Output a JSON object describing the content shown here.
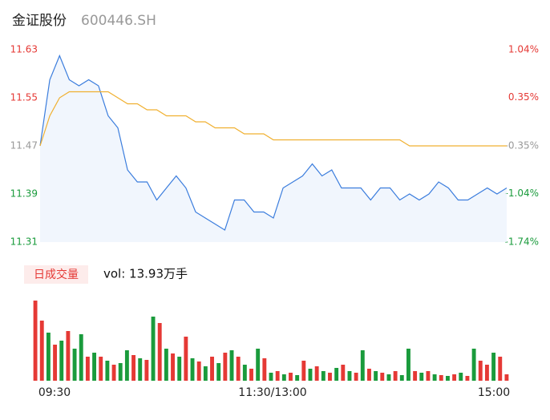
{
  "header": {
    "name": "金证股份",
    "code": "600446.SH"
  },
  "chart_data": [
    {
      "type": "line",
      "ylim": [
        11.31,
        11.63
      ],
      "yticks": [
        11.31,
        11.39,
        11.47,
        11.55,
        11.63
      ],
      "ytick_colors": [
        "#1a9b3c",
        "#1a9b3c",
        "#999999",
        "#e53935",
        "#e53935"
      ],
      "y2lim": [
        -1.74,
        1.04
      ],
      "y2ticks": [
        {
          "value": -1.74,
          "label": "-1.74%"
        },
        {
          "value": -1.04,
          "label": "-1.04%"
        },
        {
          "value": -0.35,
          "label": "-0.35%"
        },
        {
          "value": 0.35,
          "label": "0.35%"
        },
        {
          "value": 1.04,
          "label": "1.04%"
        }
      ],
      "series": [
        {
          "name": "price",
          "color": "#3b7ddd",
          "values": [
            11.47,
            11.58,
            11.62,
            11.58,
            11.57,
            11.58,
            11.57,
            11.52,
            11.5,
            11.43,
            11.41,
            11.41,
            11.38,
            11.4,
            11.42,
            11.4,
            11.36,
            11.35,
            11.34,
            11.33,
            11.38,
            11.38,
            11.36,
            11.36,
            11.35,
            11.4,
            11.41,
            11.42,
            11.44,
            11.42,
            11.43,
            11.4,
            11.4,
            11.4,
            11.38,
            11.4,
            11.4,
            11.38,
            11.39,
            11.38,
            11.39,
            11.41,
            11.4,
            11.38,
            11.38,
            11.39,
            11.4,
            11.39,
            11.4
          ]
        },
        {
          "name": "average",
          "color": "#f0b030",
          "values": [
            11.47,
            11.52,
            11.55,
            11.56,
            11.56,
            11.56,
            11.56,
            11.56,
            11.55,
            11.54,
            11.54,
            11.53,
            11.53,
            11.52,
            11.52,
            11.52,
            11.51,
            11.51,
            11.5,
            11.5,
            11.5,
            11.49,
            11.49,
            11.49,
            11.48,
            11.48,
            11.48,
            11.48,
            11.48,
            11.48,
            11.48,
            11.48,
            11.48,
            11.48,
            11.48,
            11.48,
            11.48,
            11.48,
            11.47,
            11.47,
            11.47,
            11.47,
            11.47,
            11.47,
            11.47,
            11.47,
            11.47,
            11.47,
            11.47
          ]
        }
      ]
    },
    {
      "type": "bar",
      "title": "日成交量",
      "subtitle": "vol: 13.93万手",
      "ylim": [
        0,
        100
      ],
      "values": [
        100,
        75,
        60,
        45,
        50,
        62,
        40,
        58,
        30,
        35,
        30,
        25,
        20,
        22,
        38,
        32,
        28,
        26,
        80,
        72,
        40,
        34,
        30,
        55,
        28,
        24,
        18,
        30,
        22,
        35,
        38,
        30,
        20,
        15,
        40,
        28,
        10,
        12,
        8,
        10,
        7,
        25,
        15,
        18,
        12,
        10,
        16,
        20,
        12,
        10,
        38,
        15,
        12,
        10,
        8,
        12,
        7,
        40,
        12,
        10,
        12,
        8,
        7,
        6,
        8,
        10,
        6,
        40,
        25,
        20,
        35,
        30,
        8
      ],
      "colors": [
        "#e53935",
        "#e53935",
        "#1a9b3c",
        "#e53935",
        "#1a9b3c",
        "#e53935",
        "#1a9b3c",
        "#1a9b3c",
        "#e53935",
        "#1a9b3c",
        "#e53935",
        "#1a9b3c",
        "#e53935",
        "#1a9b3c",
        "#1a9b3c",
        "#e53935",
        "#1a9b3c",
        "#e53935",
        "#1a9b3c",
        "#e53935",
        "#1a9b3c",
        "#e53935",
        "#1a9b3c",
        "#e53935",
        "#1a9b3c",
        "#e53935",
        "#1a9b3c",
        "#e53935",
        "#1a9b3c",
        "#e53935",
        "#1a9b3c",
        "#e53935",
        "#1a9b3c",
        "#e53935",
        "#1a9b3c",
        "#e53935",
        "#1a9b3c",
        "#e53935",
        "#1a9b3c",
        "#e53935",
        "#1a9b3c",
        "#e53935",
        "#1a9b3c",
        "#e53935",
        "#1a9b3c",
        "#e53935",
        "#1a9b3c",
        "#e53935",
        "#1a9b3c",
        "#e53935",
        "#1a9b3c",
        "#e53935",
        "#1a9b3c",
        "#e53935",
        "#1a9b3c",
        "#e53935",
        "#1a9b3c",
        "#1a9b3c",
        "#e53935",
        "#1a9b3c",
        "#e53935",
        "#1a9b3c",
        "#e53935",
        "#1a9b3c",
        "#e53935",
        "#1a9b3c",
        "#e53935",
        "#1a9b3c",
        "#e53935",
        "#e53935",
        "#1a9b3c",
        "#e53935",
        "#e53935"
      ],
      "xticks": [
        "09:30",
        "11:30/13:00",
        "15:00"
      ]
    }
  ]
}
